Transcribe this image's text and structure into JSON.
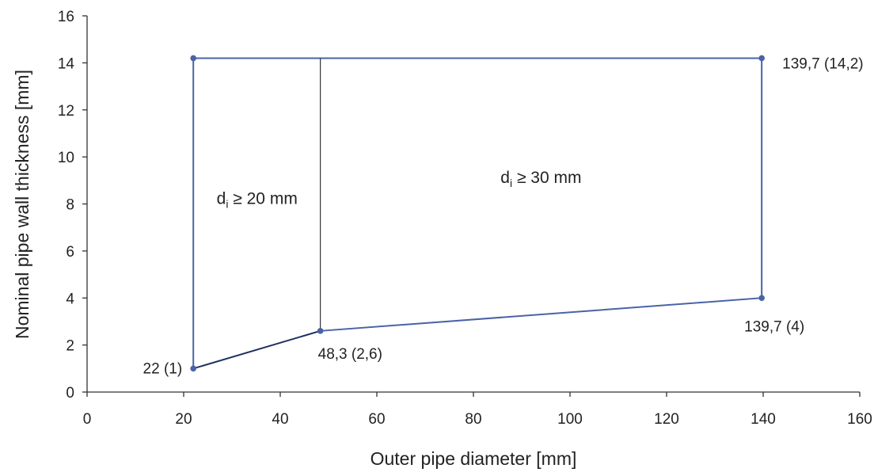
{
  "chart_data": {
    "type": "line",
    "xlabel": "Outer pipe diameter [mm]",
    "ylabel": "Nominal pipe wall thickness [mm]",
    "xlim": [
      0,
      160
    ],
    "ylim": [
      0,
      16
    ],
    "x_ticks": [
      0,
      20,
      40,
      60,
      80,
      100,
      120,
      140,
      160
    ],
    "y_ticks": [
      0,
      2,
      4,
      6,
      8,
      10,
      12,
      14,
      16
    ],
    "grid": false,
    "colors": {
      "boundary": "#4a63a6",
      "lower_curve": "#1f2f62",
      "divider": "#333333",
      "axis": "#333333"
    },
    "boundary": {
      "x": [
        22,
        22,
        139.7,
        139.7,
        48.3,
        22
      ],
      "y": [
        1,
        14.2,
        14.2,
        4,
        2.6,
        1
      ]
    },
    "divider": {
      "x": [
        48.3,
        48.3
      ],
      "y": [
        2.6,
        14.2
      ]
    },
    "points": [
      {
        "x": 22,
        "y": 1,
        "label": "22 (1)",
        "anchor": "left"
      },
      {
        "x": 22,
        "y": 14.2,
        "label": "",
        "anchor": "none"
      },
      {
        "x": 48.3,
        "y": 2.6,
        "label": "48,3 (2,6)",
        "anchor": "below-right"
      },
      {
        "x": 139.7,
        "y": 14.2,
        "label": "139,7 (14,2)",
        "anchor": "right"
      },
      {
        "x": 139.7,
        "y": 4,
        "label": "139,7 (4)",
        "anchor": "below"
      }
    ],
    "regions": [
      {
        "main": "d",
        "sub": "i",
        "rest": " ≥ 20 mm",
        "x": 35.2,
        "y": 8
      },
      {
        "main": "d",
        "sub": "i",
        "rest": " ≥ 30 mm",
        "x": 94,
        "y": 8.9
      }
    ]
  }
}
